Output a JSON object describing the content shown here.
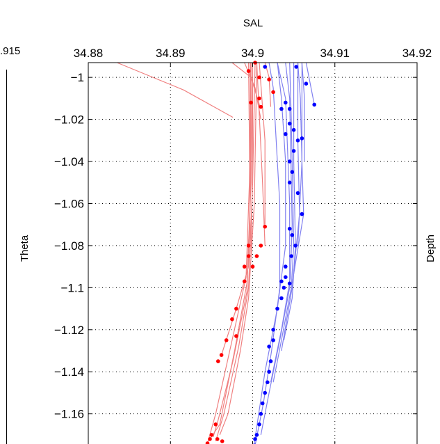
{
  "chart_data": {
    "type": "line",
    "title": "SAL",
    "xlabel": "",
    "ylabel": "Theta",
    "right_label": "Depth",
    "left_panel_tick_label": ".915",
    "x_axis_position": "top",
    "y_axis": "reversed",
    "xlim": [
      34.88,
      34.92
    ],
    "ylim": [
      -1.175,
      -0.993
    ],
    "x_ticks": [
      34.88,
      34.89,
      34.9,
      34.91,
      34.92
    ],
    "x_tick_labels": [
      "34.88",
      "34.89",
      "34.9",
      "34.91",
      "34.92"
    ],
    "y_ticks": [
      -1.0,
      -1.02,
      -1.04,
      -1.06,
      -1.08,
      -1.1,
      -1.12,
      -1.14,
      -1.16
    ],
    "y_tick_labels": [
      "−1",
      "−1.02",
      "−1.04",
      "−1.06",
      "−1.08",
      "−1.1",
      "−1.12",
      "−1.14",
      "−1.16"
    ],
    "grid": true,
    "colors": {
      "red_line": "#f08080",
      "red_dot": "#ff0000",
      "blue_line": "#8080f0",
      "blue_dot": "#0000ff"
    },
    "series": [
      {
        "group": "red",
        "points": [
          [
            34.8835,
            -0.993
          ],
          [
            34.8916,
            -1.006
          ],
          [
            34.8976,
            -1.019
          ]
        ]
      },
      {
        "group": "red",
        "points": [
          [
            34.8975,
            -0.993
          ],
          [
            34.8998,
            -1.0
          ],
          [
            34.9009,
            -1.014
          ]
        ]
      },
      {
        "group": "red",
        "points": [
          [
            34.9015,
            -0.993
          ],
          [
            34.902,
            -1.0
          ],
          [
            34.9022,
            -1.014
          ]
        ]
      },
      {
        "group": "red",
        "points": [
          [
            34.899,
            -0.993
          ],
          [
            34.9003,
            -1.005
          ],
          [
            34.901,
            -1.02
          ]
        ]
      },
      {
        "group": "red",
        "points": [
          [
            34.8995,
            -0.993
          ],
          [
            34.8996,
            -1.03
          ],
          [
            34.8997,
            -1.08
          ]
        ]
      },
      {
        "group": "red",
        "points": [
          [
            34.9,
            -0.993
          ],
          [
            34.9,
            -1.04
          ],
          [
            34.8998,
            -1.085
          ]
        ]
      },
      {
        "group": "red",
        "points": [
          [
            34.9005,
            -0.993
          ],
          [
            34.9012,
            -1.05
          ],
          [
            34.9015,
            -1.08
          ]
        ]
      },
      {
        "group": "red",
        "points": [
          [
            34.9008,
            -0.993
          ],
          [
            34.9015,
            -1.03
          ],
          [
            34.9015,
            -1.07
          ]
        ]
      },
      {
        "group": "red",
        "points": [
          [
            34.8998,
            -0.993
          ],
          [
            34.8998,
            -1.04
          ],
          [
            34.8995,
            -1.09
          ],
          [
            34.898,
            -1.11
          ],
          [
            34.8962,
            -1.132
          ]
        ]
      },
      {
        "group": "red",
        "points": [
          [
            34.8998,
            -0.993
          ],
          [
            34.8996,
            -1.05
          ],
          [
            34.8992,
            -1.095
          ],
          [
            34.8975,
            -1.125
          ],
          [
            34.8955,
            -1.16
          ],
          [
            34.8945,
            -1.174
          ]
        ]
      },
      {
        "group": "red",
        "points": [
          [
            34.9,
            -0.993
          ],
          [
            34.8998,
            -1.05
          ],
          [
            34.8993,
            -1.098
          ],
          [
            34.8978,
            -1.13
          ],
          [
            34.896,
            -1.165
          ],
          [
            34.8948,
            -1.172
          ]
        ]
      },
      {
        "group": "red",
        "points": [
          [
            34.9003,
            -0.993
          ],
          [
            34.9,
            -1.05
          ],
          [
            34.8995,
            -1.1
          ],
          [
            34.8983,
            -1.128
          ],
          [
            34.8965,
            -1.16
          ],
          [
            34.8955,
            -1.173
          ]
        ]
      },
      {
        "group": "red",
        "points": [
          [
            34.9005,
            -0.993
          ],
          [
            34.9002,
            -1.06
          ],
          [
            34.8995,
            -1.105
          ],
          [
            34.8985,
            -1.13
          ],
          [
            34.897,
            -1.16
          ],
          [
            34.896,
            -1.17
          ]
        ]
      },
      {
        "group": "red",
        "points": [
          [
            34.8997,
            -0.993
          ],
          [
            34.8997,
            -1.06
          ],
          [
            34.8993,
            -1.102
          ],
          [
            34.8976,
            -1.135
          ],
          [
            34.8958,
            -1.163
          ],
          [
            34.8952,
            -1.171
          ]
        ]
      },
      {
        "group": "blue",
        "points": [
          [
            34.902,
            -0.993
          ],
          [
            34.9025,
            -1.005
          ],
          [
            34.903,
            -1.04
          ],
          [
            34.9033,
            -1.06
          ],
          [
            34.9033,
            -1.1
          ],
          [
            34.9023,
            -1.13
          ],
          [
            34.9013,
            -1.155
          ],
          [
            34.9003,
            -1.175
          ]
        ]
      },
      {
        "group": "blue",
        "points": [
          [
            34.903,
            -0.993
          ],
          [
            34.904,
            -1.01
          ],
          [
            34.9045,
            -1.06
          ],
          [
            34.9045,
            -1.1
          ],
          [
            34.9033,
            -1.125
          ],
          [
            34.902,
            -1.15
          ],
          [
            34.901,
            -1.17
          ]
        ]
      },
      {
        "group": "blue",
        "points": [
          [
            34.904,
            -0.993
          ],
          [
            34.9045,
            -1.01
          ],
          [
            34.9048,
            -1.07
          ],
          [
            34.9046,
            -1.095
          ],
          [
            34.9035,
            -1.12
          ],
          [
            34.9022,
            -1.145
          ]
        ]
      },
      {
        "group": "blue",
        "points": [
          [
            34.9045,
            -0.993
          ],
          [
            34.9047,
            -1.02
          ],
          [
            34.905,
            -1.08
          ],
          [
            34.9047,
            -1.1
          ],
          [
            34.9035,
            -1.125
          ],
          [
            34.9025,
            -1.145
          ]
        ]
      },
      {
        "group": "blue",
        "points": [
          [
            34.905,
            -0.993
          ],
          [
            34.905,
            -1.04
          ],
          [
            34.9052,
            -1.08
          ],
          [
            34.9048,
            -1.105
          ],
          [
            34.9038,
            -1.125
          ]
        ]
      },
      {
        "group": "blue",
        "points": [
          [
            34.9055,
            -0.993
          ],
          [
            34.9055,
            -1.03
          ],
          [
            34.9057,
            -1.065
          ],
          [
            34.9048,
            -1.1
          ],
          [
            34.9035,
            -1.13
          ]
        ]
      },
      {
        "group": "blue",
        "points": [
          [
            34.906,
            -0.993
          ],
          [
            34.906,
            -1.04
          ],
          [
            34.9062,
            -1.065
          ],
          [
            34.9048,
            -1.098
          ]
        ]
      },
      {
        "group": "blue",
        "points": [
          [
            34.9055,
            -0.993
          ],
          [
            34.9058,
            -1.01
          ],
          [
            34.906,
            -1.04
          ],
          [
            34.9055,
            -1.08
          ]
        ]
      },
      {
        "group": "blue",
        "points": [
          [
            34.9065,
            -0.993
          ],
          [
            34.907,
            -1.003
          ],
          [
            34.9075,
            -1.013
          ]
        ]
      },
      {
        "group": "blue",
        "points": [
          [
            34.906,
            -0.993
          ],
          [
            34.9063,
            -1.01
          ],
          [
            34.9063,
            -1.04
          ]
        ]
      },
      {
        "group": "blue",
        "points": [
          [
            34.903,
            -0.993
          ],
          [
            34.9035,
            -1.01
          ],
          [
            34.904,
            -1.04
          ],
          [
            34.904,
            -1.08
          ],
          [
            34.903,
            -1.11
          ],
          [
            34.9015,
            -1.14
          ],
          [
            34.9002,
            -1.174
          ]
        ]
      }
    ],
    "markers": [
      {
        "group": "red",
        "points": [
          [
            34.9003,
            -0.993
          ],
          [
            34.8995,
            -0.997
          ],
          [
            34.9008,
            -1.0
          ],
          [
            34.902,
            -1.001
          ],
          [
            34.9025,
            -1.007
          ],
          [
            34.8998,
            -1.012
          ],
          [
            34.9008,
            -1.01
          ],
          [
            34.901,
            -1.014
          ],
          [
            34.8995,
            -1.08
          ],
          [
            34.8995,
            -1.085
          ],
          [
            34.9005,
            -1.085
          ],
          [
            34.899,
            -1.09
          ],
          [
            34.9,
            -1.09
          ],
          [
            34.901,
            -1.08
          ],
          [
            34.9015,
            -1.071
          ],
          [
            34.899,
            -1.097
          ],
          [
            34.898,
            -1.11
          ],
          [
            34.8975,
            -1.115
          ],
          [
            34.898,
            -1.123
          ],
          [
            34.8968,
            -1.125
          ],
          [
            34.8962,
            -1.132
          ],
          [
            34.8958,
            -1.135
          ],
          [
            34.8955,
            -1.165
          ],
          [
            34.895,
            -1.17
          ],
          [
            34.8945,
            -1.174
          ],
          [
            34.8948,
            -1.172
          ],
          [
            34.8957,
            -1.172
          ],
          [
            34.8963,
            -1.173
          ]
        ]
      },
      {
        "group": "blue",
        "points": [
          [
            34.9015,
            -0.995
          ],
          [
            34.9053,
            -0.995
          ],
          [
            34.9065,
            -1.003
          ],
          [
            34.9075,
            -1.013
          ],
          [
            34.904,
            -1.012
          ],
          [
            34.9045,
            -1.015
          ],
          [
            34.9035,
            -1.015
          ],
          [
            34.9045,
            -1.022
          ],
          [
            34.905,
            -1.025
          ],
          [
            34.904,
            -1.027
          ],
          [
            34.9055,
            -1.03
          ],
          [
            34.906,
            -1.029
          ],
          [
            34.905,
            -1.035
          ],
          [
            34.9045,
            -1.04
          ],
          [
            34.9048,
            -1.045
          ],
          [
            34.9045,
            -1.05
          ],
          [
            34.9055,
            -1.055
          ],
          [
            34.906,
            -1.065
          ],
          [
            34.9045,
            -1.072
          ],
          [
            34.9048,
            -1.075
          ],
          [
            34.9052,
            -1.08
          ],
          [
            34.9047,
            -1.085
          ],
          [
            34.904,
            -1.09
          ],
          [
            34.904,
            -1.095
          ],
          [
            34.9035,
            -1.097
          ],
          [
            34.9045,
            -1.098
          ],
          [
            34.9038,
            -1.1
          ],
          [
            34.9035,
            -1.105
          ],
          [
            34.903,
            -1.11
          ],
          [
            34.9025,
            -1.12
          ],
          [
            34.9025,
            -1.125
          ],
          [
            34.902,
            -1.128
          ],
          [
            34.9022,
            -1.135
          ],
          [
            34.902,
            -1.14
          ],
          [
            34.9018,
            -1.145
          ],
          [
            34.9015,
            -1.15
          ],
          [
            34.9012,
            -1.155
          ],
          [
            34.901,
            -1.16
          ],
          [
            34.9008,
            -1.165
          ],
          [
            34.9005,
            -1.17
          ],
          [
            34.9003,
            -1.172
          ],
          [
            34.9002,
            -1.175
          ]
        ]
      }
    ]
  }
}
